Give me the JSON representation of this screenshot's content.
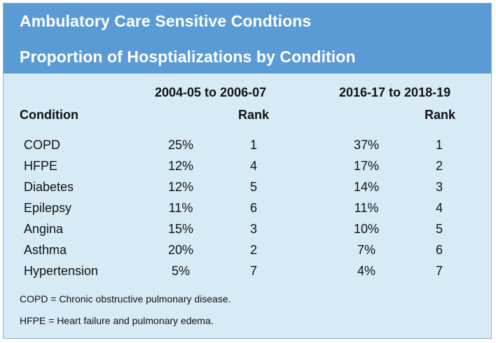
{
  "title_line1": "Ambulatory Care Sensitive Condtions",
  "title_line2": "Proportion of Hosptializations by Condition",
  "columns": {
    "condition": "Condition",
    "period1": "2004-05 to 2006-07",
    "period1_rank": "Rank",
    "period2": "2016-17 to 2018-19",
    "period2_rank": "Rank"
  },
  "rows": [
    {
      "condition": "COPD",
      "p1": "25%",
      "r1": "1",
      "p2": "37%",
      "r2": "1"
    },
    {
      "condition": "HFPE",
      "p1": "12%",
      "r1": "4",
      "p2": "17%",
      "r2": "2"
    },
    {
      "condition": "Diabetes",
      "p1": "12%",
      "r1": "5",
      "p2": "14%",
      "r2": "3"
    },
    {
      "condition": "Epilepsy",
      "p1": "11%",
      "r1": "6",
      "p2": "11%",
      "r2": "4"
    },
    {
      "condition": "Angina",
      "p1": "15%",
      "r1": "3",
      "p2": "10%",
      "r2": "5"
    },
    {
      "condition": "Asthma",
      "p1": "20%",
      "r1": "2",
      "p2": "7%",
      "r2": "6"
    },
    {
      "condition": "Hypertension",
      "p1": "5%",
      "r1": "7",
      "p2": "4%",
      "r2": "7"
    }
  ],
  "notes": [
    "COPD = Chronic obstructive pulmonary disease.",
    "HFPE = Heart failure and pulmonary edema."
  ],
  "colors": {
    "header_bg": "#5b9bd5",
    "body_bg": "#d7ebf6"
  }
}
